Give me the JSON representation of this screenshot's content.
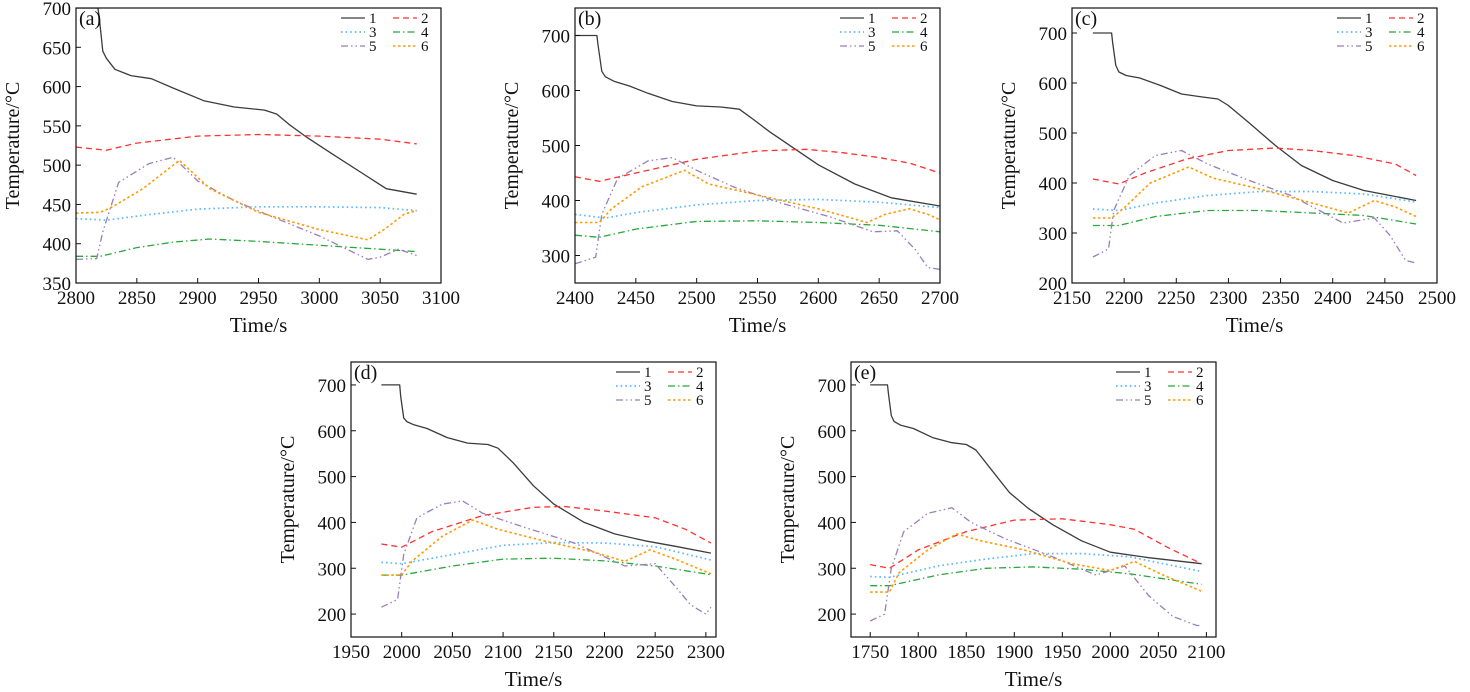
{
  "figure": {
    "x_label": "Time/s",
    "y_label": "Temperature/°C"
  },
  "legend": {
    "labels": [
      "1",
      "2",
      "3",
      "4",
      "5",
      "6"
    ],
    "styles": [
      {
        "color": "#3c3c3c",
        "dash": "",
        "width": 1.3
      },
      {
        "color": "#ff3030",
        "dash": "6,4",
        "width": 1.3
      },
      {
        "color": "#59b8ff",
        "dash": "1.6,3",
        "width": 1.7
      },
      {
        "color": "#28a83c",
        "dash": "7,3,1.5,3",
        "width": 1.3
      },
      {
        "color": "#9a7db8",
        "dash": "7,3,1.5,3,1.5,3",
        "width": 1.3
      },
      {
        "color": "#ff9a00",
        "dash": "2.5,2.5",
        "width": 1.6
      }
    ]
  },
  "chart_data": [
    {
      "panel": "(a)",
      "type": "line",
      "xlabel": "Time/s",
      "ylabel": "Temperature/°C",
      "xlim": [
        2800,
        3100
      ],
      "ylim": [
        350,
        700
      ],
      "xticks": [
        2800,
        2850,
        2900,
        2950,
        3000,
        3050,
        3100
      ],
      "yticks": [
        350,
        400,
        450,
        500,
        550,
        600,
        650,
        700
      ],
      "legend": "top-right",
      "series": [
        {
          "name": "1",
          "x": [
            2800,
            2818,
            2819,
            2822,
            2825,
            2832,
            2845,
            2862,
            2880,
            2905,
            2930,
            2955,
            2965,
            2975,
            2990,
            3010,
            3035,
            3055,
            3080
          ],
          "y": [
            700,
            700,
            690,
            645,
            636,
            622,
            614,
            610,
            598,
            582,
            574,
            570,
            565,
            552,
            535,
            515,
            490,
            470,
            463
          ]
        },
        {
          "name": "2",
          "x": [
            2800,
            2825,
            2850,
            2900,
            2950,
            3000,
            3050,
            3080
          ],
          "y": [
            523,
            519,
            528,
            537,
            539,
            537,
            533,
            527
          ]
        },
        {
          "name": "3",
          "x": [
            2800,
            2825,
            2860,
            2900,
            2950,
            3000,
            3050,
            3080
          ],
          "y": [
            432,
            430,
            437,
            444,
            447,
            447,
            446,
            442
          ]
        },
        {
          "name": "4",
          "x": [
            2800,
            2820,
            2850,
            2880,
            2910,
            2950,
            3000,
            3050,
            3080
          ],
          "y": [
            384,
            384,
            395,
            402,
            406,
            403,
            398,
            393,
            390
          ]
        },
        {
          "name": "5",
          "x": [
            2800,
            2817,
            2822,
            2835,
            2860,
            2880,
            2900,
            2930,
            2960,
            3000,
            3040,
            3050,
            3065,
            3080
          ],
          "y": [
            380,
            381,
            415,
            478,
            502,
            510,
            480,
            455,
            435,
            410,
            380,
            383,
            393,
            385
          ]
        },
        {
          "name": "6",
          "x": [
            2800,
            2820,
            2830,
            2855,
            2885,
            2910,
            2950,
            3000,
            3040,
            3055,
            3070,
            3080
          ],
          "y": [
            439,
            440,
            447,
            470,
            506,
            470,
            440,
            418,
            405,
            420,
            438,
            442
          ]
        }
      ]
    },
    {
      "panel": "(b)",
      "type": "line",
      "xlabel": "Time/s",
      "ylabel": "Temperature/°C",
      "xlim": [
        2400,
        2700
      ],
      "ylim": [
        250,
        750
      ],
      "xticks": [
        2400,
        2450,
        2500,
        2550,
        2600,
        2650,
        2700
      ],
      "yticks": [
        300,
        400,
        500,
        600,
        700
      ],
      "legend": "top-right",
      "series": [
        {
          "name": "1",
          "x": [
            2400,
            2418,
            2419,
            2422,
            2425,
            2432,
            2445,
            2460,
            2480,
            2500,
            2520,
            2535,
            2545,
            2560,
            2580,
            2600,
            2630,
            2660,
            2700
          ],
          "y": [
            700,
            700,
            682,
            635,
            625,
            617,
            608,
            595,
            580,
            572,
            570,
            566,
            550,
            525,
            495,
            465,
            430,
            405,
            390
          ]
        },
        {
          "name": "2",
          "x": [
            2400,
            2420,
            2450,
            2500,
            2550,
            2590,
            2620,
            2650,
            2675,
            2700
          ],
          "y": [
            443,
            435,
            450,
            475,
            490,
            493,
            487,
            478,
            468,
            450
          ]
        },
        {
          "name": "3",
          "x": [
            2400,
            2425,
            2450,
            2500,
            2550,
            2600,
            2650,
            2700
          ],
          "y": [
            375,
            368,
            378,
            392,
            400,
            402,
            397,
            387
          ]
        },
        {
          "name": "4",
          "x": [
            2400,
            2420,
            2450,
            2500,
            2550,
            2600,
            2650,
            2700
          ],
          "y": [
            337,
            333,
            348,
            362,
            363,
            360,
            355,
            343
          ]
        },
        {
          "name": "5",
          "x": [
            2400,
            2417,
            2422,
            2435,
            2460,
            2480,
            2500,
            2530,
            2570,
            2610,
            2645,
            2665,
            2680,
            2690,
            2700
          ],
          "y": [
            285,
            297,
            375,
            440,
            472,
            478,
            455,
            425,
            395,
            370,
            343,
            345,
            310,
            278,
            275
          ]
        },
        {
          "name": "6",
          "x": [
            2400,
            2420,
            2430,
            2455,
            2490,
            2510,
            2550,
            2600,
            2640,
            2655,
            2675,
            2690,
            2700
          ],
          "y": [
            360,
            360,
            385,
            425,
            455,
            430,
            410,
            385,
            360,
            375,
            385,
            375,
            365
          ]
        }
      ]
    },
    {
      "panel": "(c)",
      "type": "line",
      "xlabel": "Time/s",
      "ylabel": "Temperature/°C",
      "xlim": [
        2150,
        2500
      ],
      "ylim": [
        200,
        750
      ],
      "xticks": [
        2150,
        2200,
        2250,
        2300,
        2350,
        2400,
        2450,
        2500
      ],
      "yticks": [
        200,
        300,
        400,
        500,
        600,
        700
      ],
      "legend": "top-right",
      "series": [
        {
          "name": "1",
          "x": [
            2170,
            2188,
            2189,
            2192,
            2195,
            2202,
            2215,
            2235,
            2255,
            2275,
            2290,
            2300,
            2320,
            2345,
            2370,
            2400,
            2430,
            2455,
            2480
          ],
          "y": [
            700,
            700,
            680,
            635,
            622,
            615,
            610,
            595,
            578,
            572,
            568,
            555,
            520,
            475,
            435,
            405,
            385,
            375,
            365
          ]
        },
        {
          "name": "2",
          "x": [
            2170,
            2195,
            2220,
            2260,
            2300,
            2345,
            2380,
            2420,
            2460,
            2480
          ],
          "y": [
            408,
            398,
            420,
            448,
            465,
            470,
            465,
            455,
            438,
            415
          ]
        },
        {
          "name": "3",
          "x": [
            2170,
            2195,
            2230,
            2280,
            2330,
            2380,
            2430,
            2480
          ],
          "y": [
            348,
            345,
            360,
            375,
            383,
            383,
            378,
            362
          ]
        },
        {
          "name": "4",
          "x": [
            2170,
            2195,
            2230,
            2280,
            2330,
            2380,
            2430,
            2480
          ],
          "y": [
            315,
            315,
            333,
            345,
            345,
            340,
            335,
            318
          ]
        },
        {
          "name": "5",
          "x": [
            2170,
            2185,
            2190,
            2205,
            2230,
            2255,
            2280,
            2320,
            2360,
            2410,
            2440,
            2455,
            2470,
            2480
          ],
          "y": [
            252,
            268,
            345,
            415,
            455,
            465,
            438,
            405,
            375,
            320,
            330,
            295,
            245,
            240
          ]
        },
        {
          "name": "6",
          "x": [
            2170,
            2188,
            2200,
            2225,
            2262,
            2285,
            2330,
            2380,
            2415,
            2440,
            2460,
            2480
          ],
          "y": [
            330,
            330,
            350,
            400,
            432,
            410,
            388,
            360,
            340,
            365,
            352,
            333
          ]
        }
      ]
    },
    {
      "panel": "(d)",
      "type": "line",
      "xlabel": "Time/s",
      "ylabel": "Temperature/°C",
      "xlim": [
        1950,
        2310
      ],
      "ylim": [
        150,
        750
      ],
      "xticks": [
        1950,
        2000,
        2050,
        2100,
        2150,
        2200,
        2250,
        2300
      ],
      "yticks": [
        200,
        300,
        400,
        500,
        600,
        700
      ],
      "legend": "top-right",
      "series": [
        {
          "name": "1",
          "x": [
            1980,
            1998,
            1999,
            2002,
            2005,
            2012,
            2025,
            2045,
            2065,
            2085,
            2095,
            2110,
            2130,
            2150,
            2180,
            2210,
            2240,
            2270,
            2305
          ],
          "y": [
            700,
            700,
            675,
            628,
            620,
            613,
            605,
            585,
            573,
            570,
            562,
            530,
            480,
            440,
            400,
            375,
            360,
            348,
            333
          ]
        },
        {
          "name": "2",
          "x": [
            1980,
            2000,
            2030,
            2080,
            2130,
            2160,
            2200,
            2250,
            2280,
            2305
          ],
          "y": [
            353,
            346,
            380,
            415,
            433,
            435,
            425,
            410,
            385,
            355
          ]
        },
        {
          "name": "3",
          "x": [
            1980,
            2000,
            2050,
            2100,
            2150,
            2200,
            2250,
            2305
          ],
          "y": [
            313,
            310,
            330,
            350,
            356,
            355,
            347,
            318
          ]
        },
        {
          "name": "4",
          "x": [
            1980,
            2000,
            2050,
            2100,
            2150,
            2200,
            2250,
            2305
          ],
          "y": [
            285,
            285,
            305,
            320,
            322,
            316,
            305,
            286
          ]
        },
        {
          "name": "5",
          "x": [
            1980,
            1996,
            2002,
            2015,
            2040,
            2060,
            2080,
            2120,
            2170,
            2220,
            2250,
            2270,
            2285,
            2300,
            2305
          ],
          "y": [
            215,
            232,
            330,
            410,
            440,
            447,
            420,
            390,
            355,
            305,
            310,
            260,
            220,
            200,
            215
          ]
        },
        {
          "name": "6",
          "x": [
            1980,
            2000,
            2010,
            2040,
            2070,
            2095,
            2140,
            2190,
            2220,
            2245,
            2270,
            2305
          ],
          "y": [
            285,
            285,
            315,
            370,
            405,
            385,
            360,
            335,
            315,
            340,
            320,
            288
          ]
        }
      ]
    },
    {
      "panel": "(e)",
      "type": "line",
      "xlabel": "Time/s",
      "ylabel": "Temperature/°C",
      "xlim": [
        1730,
        2110
      ],
      "ylim": [
        150,
        750
      ],
      "xticks": [
        1750,
        1800,
        1850,
        1900,
        1950,
        2000,
        2050,
        2100
      ],
      "yticks": [
        200,
        300,
        400,
        500,
        600,
        700
      ],
      "legend": "top-right",
      "series": [
        {
          "name": "1",
          "x": [
            1750,
            1768,
            1769,
            1772,
            1775,
            1782,
            1795,
            1815,
            1835,
            1850,
            1860,
            1875,
            1895,
            1915,
            1940,
            1970,
            2000,
            2040,
            2095
          ],
          "y": [
            700,
            700,
            680,
            633,
            620,
            612,
            605,
            585,
            574,
            570,
            558,
            518,
            465,
            430,
            395,
            360,
            335,
            323,
            310
          ]
        },
        {
          "name": "2",
          "x": [
            1750,
            1770,
            1800,
            1850,
            1900,
            1950,
            2000,
            2025,
            2060,
            2095
          ],
          "y": [
            308,
            300,
            340,
            380,
            405,
            408,
            395,
            385,
            345,
            310
          ]
        },
        {
          "name": "3",
          "x": [
            1750,
            1770,
            1820,
            1870,
            1920,
            1970,
            2020,
            2095
          ],
          "y": [
            282,
            280,
            305,
            320,
            332,
            332,
            325,
            293
          ]
        },
        {
          "name": "4",
          "x": [
            1750,
            1770,
            1820,
            1870,
            1920,
            1970,
            2020,
            2095
          ],
          "y": [
            262,
            262,
            285,
            300,
            303,
            298,
            288,
            265
          ]
        },
        {
          "name": "5",
          "x": [
            1750,
            1765,
            1772,
            1785,
            1810,
            1835,
            1855,
            1890,
            1940,
            1985,
            2015,
            2040,
            2065,
            2090,
            2095
          ],
          "y": [
            185,
            200,
            300,
            380,
            420,
            432,
            400,
            365,
            325,
            285,
            305,
            240,
            195,
            175,
            175
          ]
        },
        {
          "name": "6",
          "x": [
            1750,
            1770,
            1780,
            1810,
            1840,
            1865,
            1910,
            1960,
            2000,
            2025,
            2055,
            2095
          ],
          "y": [
            248,
            248,
            290,
            340,
            375,
            360,
            340,
            310,
            295,
            315,
            285,
            250
          ]
        }
      ]
    }
  ]
}
